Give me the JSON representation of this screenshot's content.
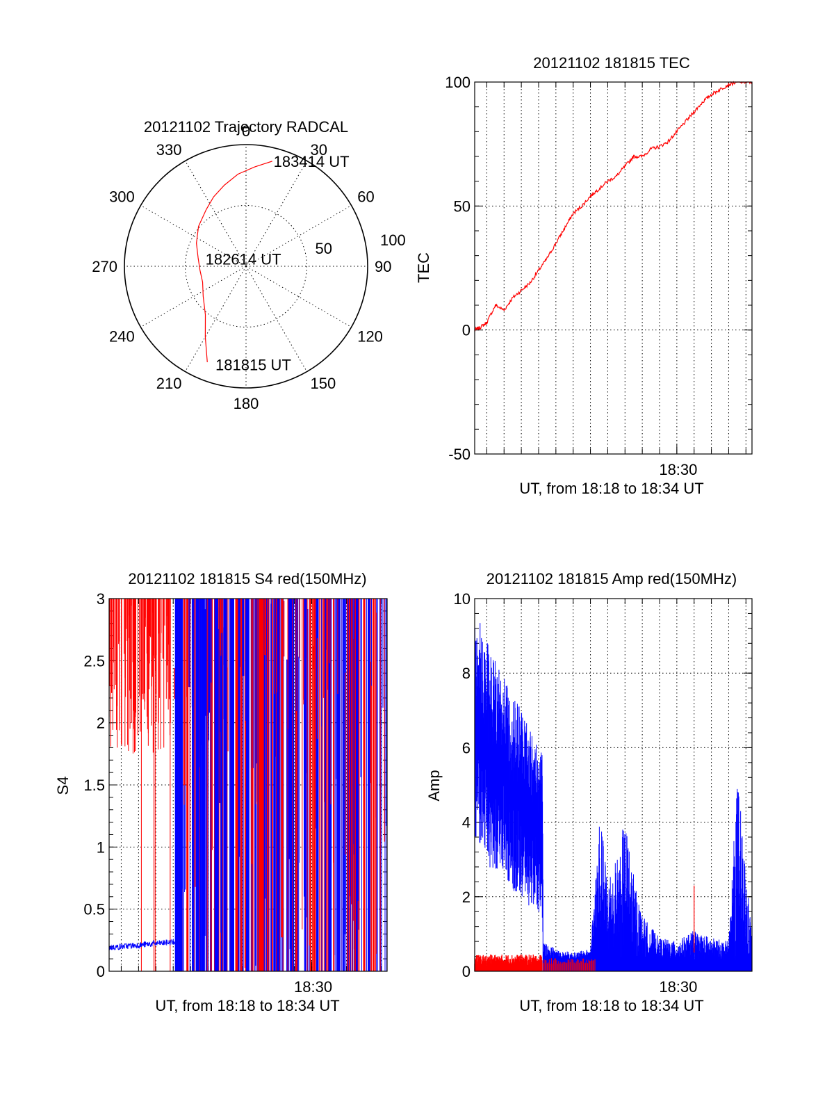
{
  "colors": {
    "red": "#ff0000",
    "blue": "#0000ff",
    "axis": "#000000"
  },
  "chart_data": [
    {
      "id": "trajectory",
      "type": "polar",
      "title": "20121102 Trajectory RADCAL",
      "angle_labels": [
        "0",
        "30",
        "60",
        "90",
        "120",
        "150",
        "180",
        "210",
        "240",
        "270",
        "300",
        "330"
      ],
      "radial_labels": [
        "50",
        "100"
      ],
      "grid": true,
      "track": {
        "azimuth_deg": [
          14,
          5,
          -5,
          -15,
          -25,
          -35,
          -50,
          -65,
          -80,
          -95,
          -110,
          -125,
          -140,
          -150,
          -158
        ],
        "zenith_pct": [
          89,
          82,
          76,
          69,
          63,
          57,
          51,
          45,
          40,
          38,
          38,
          43,
          52,
          67,
          85
        ]
      },
      "annotations": [
        {
          "text": "183414 UT",
          "azimuth_deg": 14,
          "zenith_pct": 89
        },
        {
          "text": "182614 UT",
          "azimuth_deg": 280,
          "zenith_pct": 35
        },
        {
          "text": "181815 UT",
          "azimuth_deg": 198,
          "zenith_pct": 85
        }
      ]
    },
    {
      "id": "tec",
      "type": "line",
      "title": "20121102 181815 TEC",
      "xlabel": "UT, from 18:18 to 18:34 UT",
      "ylabel": "TEC",
      "xlim_min": [
        18.3,
        34.35
      ],
      "ylim": [
        -50,
        100
      ],
      "yticks": [
        "100",
        "50",
        "0",
        "-50"
      ],
      "xticks": [
        {
          "value_min": 30.0,
          "label": "18:30"
        }
      ],
      "grid": true,
      "series": [
        {
          "color": "red",
          "x_min": [
            18.3,
            18.6,
            19.0,
            19.5,
            20.0,
            20.5,
            21.0,
            21.5,
            22.0,
            22.5,
            23.0,
            23.5,
            24.0,
            24.5,
            25.0,
            25.5,
            26.0,
            26.5,
            27.0,
            27.5,
            28.0,
            28.5,
            29.0,
            29.5,
            30.0,
            30.5,
            31.0,
            31.5,
            32.0,
            32.5,
            33.0,
            33.5,
            34.0,
            34.35
          ],
          "y": [
            0,
            1,
            3,
            10,
            8,
            13,
            16,
            19,
            24,
            29,
            35,
            41,
            47,
            50,
            54,
            57,
            60,
            62,
            66,
            70,
            70,
            73,
            74,
            76,
            80,
            84,
            88,
            92,
            95,
            97,
            99,
            100,
            100,
            100
          ]
        }
      ]
    },
    {
      "id": "s4",
      "type": "line",
      "title": "20121102 181815 S4 red(150MHz)",
      "xlabel": "UT, from 18:18 to 18:34 UT",
      "ylabel": "S4",
      "xlim_min": [
        18.3,
        34.35
      ],
      "ylim": [
        0,
        3
      ],
      "yticks": [
        "3",
        "2.5",
        "2",
        "1.5",
        "1",
        "0.5",
        "0"
      ],
      "xticks": [
        {
          "value_min": 30.0,
          "label": "18:30"
        }
      ],
      "grid": true,
      "series": [
        {
          "color": "blue",
          "segment_before_min": 22.1,
          "level_before": 0.2,
          "x_min": [
            18.3,
            18.8,
            19.3,
            19.8,
            20.3,
            20.8,
            21.3,
            21.8,
            22.1
          ],
          "y": [
            0.17,
            0.19,
            0.18,
            0.21,
            0.2,
            0.22,
            0.21,
            0.23,
            0.24
          ]
        },
        {
          "color": "red",
          "note_values": [
            2.8,
            2.3,
            1.8,
            2.5,
            2.2,
            2.0
          ],
          "x_min": [
            18.3,
            19.0,
            19.6,
            20.2,
            20.9,
            21.6
          ],
          "y": [
            2.2,
            2.4,
            1.75,
            2.7,
            2.2,
            2.05
          ]
        }
      ]
    },
    {
      "id": "amp",
      "type": "line",
      "title": "20121102 181815 Amp red(150MHz)",
      "xlabel": "UT, from 18:18 to 18:34 UT",
      "ylabel": "Amp",
      "xlim_min": [
        18.3,
        34.35
      ],
      "ylim": [
        0,
        10
      ],
      "yticks": [
        "10",
        "8",
        "6",
        "4",
        "2",
        "0"
      ],
      "xticks": [
        {
          "value_min": 30.0,
          "label": "18:30"
        }
      ],
      "grid": true,
      "series": [
        {
          "color": "blue",
          "x_min": [
            18.3,
            18.8,
            19.3,
            19.8,
            20.3,
            20.8,
            21.3,
            21.8,
            22.2,
            22.3,
            23.0,
            24.0,
            25.0,
            25.5,
            26.0,
            26.5,
            27.0,
            27.5,
            28.0,
            29.0,
            30.0,
            31.0,
            32.0,
            33.0,
            33.5,
            34.35
          ],
          "y_high": [
            9.9,
            9.2,
            8.5,
            8.2,
            7.5,
            7.3,
            6.8,
            6.3,
            6.0,
            0.8,
            0.6,
            0.5,
            0.6,
            4.3,
            2.7,
            3.0,
            4.1,
            2.6,
            1.5,
            0.9,
            0.8,
            1.1,
            0.9,
            0.8,
            5.3,
            1.0
          ],
          "y_low": [
            3.5,
            3.2,
            2.5,
            2.8,
            2.2,
            2.0,
            1.8,
            1.6,
            1.5,
            0.0,
            0.0,
            0.0,
            0.0,
            0.0,
            0.0,
            0.0,
            0.0,
            0.0,
            0.0,
            0.0,
            0.0,
            0.0,
            0.0,
            0.0,
            0.0,
            0.0
          ]
        },
        {
          "color": "red",
          "x_min": [
            18.3,
            19.0,
            20.0,
            21.0,
            22.0,
            22.2,
            25.3,
            31.0
          ],
          "y_high": [
            0.45,
            0.4,
            0.45,
            0.4,
            0.42,
            0.3,
            0.3,
            2.3
          ]
        }
      ]
    }
  ]
}
